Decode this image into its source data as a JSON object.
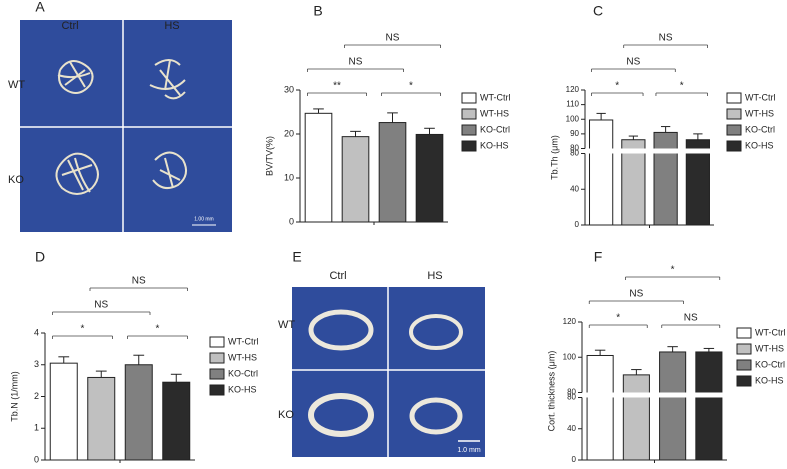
{
  "chart_data": [
    {
      "type": "bar",
      "panel": "B",
      "ylabel": "BV/TV(%)",
      "categories": [
        null
      ],
      "series": [
        {
          "name": "WT-Ctrl",
          "color": "#ffffff",
          "values": [
            24.7
          ],
          "errors": [
            1.0
          ]
        },
        {
          "name": "WT-HS",
          "color": "#c0c0c0",
          "values": [
            19.4
          ],
          "errors": [
            1.2
          ]
        },
        {
          "name": "KO-Ctrl",
          "color": "#808080",
          "values": [
            22.6
          ],
          "errors": [
            2.2
          ]
        },
        {
          "name": "KO-HS",
          "color": "#2b2b2b",
          "values": [
            19.9
          ],
          "errors": [
            1.4
          ]
        }
      ],
      "ylim": [
        0,
        30
      ],
      "yticks": [
        0,
        10,
        20,
        30
      ],
      "annotations": [
        {
          "text": "**",
          "from": 0,
          "to": 1
        },
        {
          "text": "*",
          "from": 2,
          "to": 3
        },
        {
          "text": "NS",
          "from": 0,
          "to": 2
        },
        {
          "text": "NS",
          "from": 1,
          "to": 3
        }
      ]
    },
    {
      "type": "bar",
      "panel": "C",
      "ylabel": "Tb.Th (μm)",
      "categories": [
        null
      ],
      "series": [
        {
          "name": "WT-Ctrl",
          "color": "#ffffff",
          "values": [
            99.5
          ],
          "errors": [
            4.5
          ]
        },
        {
          "name": "WT-HS",
          "color": "#c0c0c0",
          "values": [
            86
          ],
          "errors": [
            2.5
          ]
        },
        {
          "name": "KO-Ctrl",
          "color": "#808080",
          "values": [
            91
          ],
          "errors": [
            4
          ]
        },
        {
          "name": "KO-HS",
          "color": "#2b2b2b",
          "values": [
            86
          ],
          "errors": [
            4
          ]
        }
      ],
      "yaxis_segments": [
        {
          "ylim": [
            0,
            80
          ],
          "yticks": [
            0,
            40,
            80
          ]
        },
        {
          "ylim": [
            80,
            120
          ],
          "yticks": [
            80,
            90,
            100,
            110,
            120
          ]
        }
      ],
      "annotations": [
        {
          "text": "*",
          "from": 0,
          "to": 1
        },
        {
          "text": "*",
          "from": 2,
          "to": 3
        },
        {
          "text": "NS",
          "from": 0,
          "to": 2
        },
        {
          "text": "NS",
          "from": 1,
          "to": 3
        }
      ]
    },
    {
      "type": "bar",
      "panel": "D",
      "ylabel": "Tb.N (1/mm)",
      "categories": [
        null
      ],
      "series": [
        {
          "name": "WT-Ctrl",
          "color": "#ffffff",
          "values": [
            3.05
          ],
          "errors": [
            0.2
          ]
        },
        {
          "name": "WT-HS",
          "color": "#c0c0c0",
          "values": [
            2.6
          ],
          "errors": [
            0.2
          ]
        },
        {
          "name": "KO-Ctrl",
          "color": "#808080",
          "values": [
            3.0
          ],
          "errors": [
            0.3
          ]
        },
        {
          "name": "KO-HS",
          "color": "#2b2b2b",
          "values": [
            2.45
          ],
          "errors": [
            0.25
          ]
        }
      ],
      "ylim": [
        0,
        4
      ],
      "yticks": [
        0,
        1,
        2,
        3,
        4
      ],
      "annotations": [
        {
          "text": "*",
          "from": 0,
          "to": 1
        },
        {
          "text": "*",
          "from": 2,
          "to": 3
        },
        {
          "text": "NS",
          "from": 0,
          "to": 2
        },
        {
          "text": "NS",
          "from": 1,
          "to": 3
        }
      ]
    },
    {
      "type": "bar",
      "panel": "F",
      "ylabel": "Cort. thickness (μm)",
      "categories": [
        null
      ],
      "series": [
        {
          "name": "WT-Ctrl",
          "color": "#ffffff",
          "values": [
            101
          ],
          "errors": [
            3
          ]
        },
        {
          "name": "WT-HS",
          "color": "#c0c0c0",
          "values": [
            90
          ],
          "errors": [
            3
          ]
        },
        {
          "name": "KO-Ctrl",
          "color": "#808080",
          "values": [
            103
          ],
          "errors": [
            3
          ]
        },
        {
          "name": "KO-HS",
          "color": "#2b2b2b",
          "values": [
            103
          ],
          "errors": [
            2
          ]
        }
      ],
      "yaxis_segments": [
        {
          "ylim": [
            0,
            80
          ],
          "yticks": [
            0,
            40,
            80
          ]
        },
        {
          "ylim": [
            80,
            120
          ],
          "yticks": [
            80,
            100,
            120
          ]
        }
      ],
      "annotations": [
        {
          "text": "*",
          "from": 0,
          "to": 1
        },
        {
          "text": "NS",
          "from": 2,
          "to": 3
        },
        {
          "text": "NS",
          "from": 0,
          "to": 2
        },
        {
          "text": "*",
          "from": 1,
          "to": 3
        }
      ]
    }
  ],
  "image_panels": [
    {
      "panel": "A",
      "columns": [
        "Ctrl",
        "HS"
      ],
      "rows": [
        "WT",
        "KO"
      ],
      "scale_bar": "1.00 mm"
    },
    {
      "panel": "E",
      "columns": [
        "Ctrl",
        "HS"
      ],
      "rows": [
        "WT",
        "KO"
      ],
      "scale_bar": "1.0 mm"
    }
  ]
}
